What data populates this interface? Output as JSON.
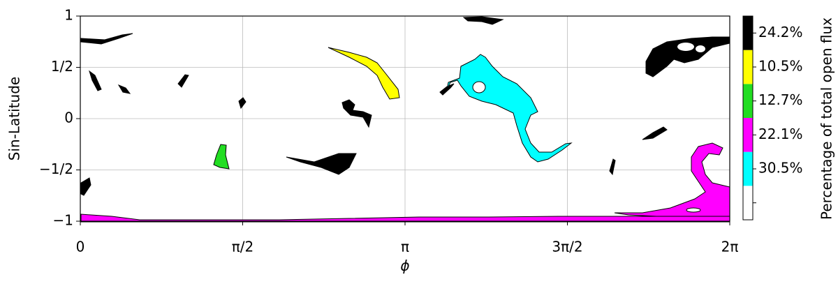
{
  "chart_data": {
    "type": "region-map",
    "xlabel": "ϕ",
    "ylabel": "Sin-Latitude",
    "xlim": [
      0,
      6.2832
    ],
    "ylim": [
      -1,
      1
    ],
    "xticks": [
      0,
      {
        "value": 1.5708,
        "label": "π/2"
      },
      {
        "value": 3.1416,
        "label": "π"
      },
      {
        "value": 4.7124,
        "label": "3π/2"
      },
      {
        "value": 6.2832,
        "label": "2π"
      }
    ],
    "yticks": [
      {
        "value": -1,
        "label": "−1"
      },
      {
        "value": -0.5,
        "label": "−1/2"
      },
      0,
      {
        "value": 0.5,
        "label": "1/2"
      },
      1
    ],
    "grid": true,
    "colorbar": {
      "label": "Percentage of total open flux",
      "colors": [
        "#ffffff",
        "#00ffff",
        "#ff00ff",
        "#22dd22",
        "#ffff00",
        "#000000"
      ],
      "values": [
        null,
        30.5,
        22.1,
        12.7,
        10.5,
        24.2
      ],
      "value_labels": [
        null,
        "30.5%",
        "22.1%",
        "12.7%",
        "10.5%",
        "24.2%"
      ]
    }
  }
}
